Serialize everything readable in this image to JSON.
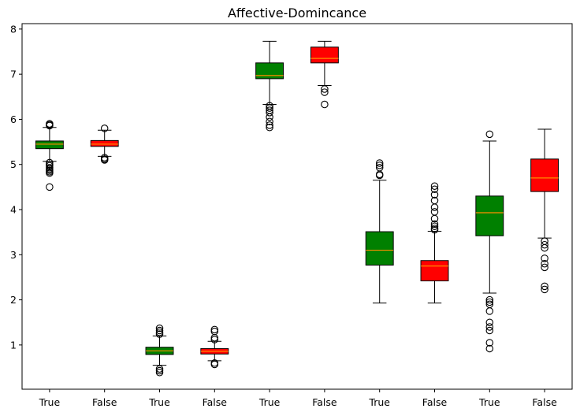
{
  "chart_data": {
    "type": "box",
    "title": "Affective-Domincance",
    "xlabel": "",
    "ylabel": "",
    "categories": [
      "True",
      "False",
      "True",
      "False",
      "True",
      "False",
      "True",
      "False",
      "True",
      "False"
    ],
    "yticks": [
      1,
      2,
      3,
      4,
      5,
      6,
      7,
      8
    ],
    "ylim": [
      0.02,
      8.12
    ],
    "grid": false,
    "colors": {
      "True": "#008000",
      "False": "#ff0000",
      "median": "#ff8c00"
    },
    "boxes": [
      {
        "label": "True",
        "whisker_low": 5.07,
        "q1": 5.35,
        "median": 5.45,
        "q3": 5.52,
        "whisker_high": 5.82,
        "outliers": [
          5.86,
          5.88,
          5.9,
          5.04,
          5.0,
          4.97,
          4.93,
          4.9,
          4.87,
          4.84,
          4.81,
          4.5
        ]
      },
      {
        "label": "False",
        "whisker_low": 5.18,
        "q1": 5.4,
        "median": 5.45,
        "q3": 5.53,
        "whisker_high": 5.76,
        "outliers": [
          5.8,
          5.15,
          5.12,
          5.1
        ]
      },
      {
        "label": "True",
        "whisker_low": 0.55,
        "q1": 0.79,
        "median": 0.87,
        "q3": 0.95,
        "whisker_high": 1.2,
        "outliers": [
          1.24,
          1.28,
          1.32,
          1.37,
          0.47,
          0.43,
          0.39
        ]
      },
      {
        "label": "False",
        "whisker_low": 0.65,
        "q1": 0.8,
        "median": 0.86,
        "q3": 0.92,
        "whisker_high": 1.08,
        "outliers": [
          1.12,
          1.16,
          1.3,
          1.34,
          0.6,
          0.57
        ]
      },
      {
        "label": "True",
        "whisker_low": 6.33,
        "q1": 6.9,
        "median": 6.97,
        "q3": 7.25,
        "whisker_high": 7.73,
        "outliers": [
          6.3,
          6.25,
          6.2,
          6.15,
          6.05,
          5.95,
          5.87,
          5.82
        ]
      },
      {
        "label": "False",
        "whisker_low": 6.75,
        "q1": 7.25,
        "median": 7.35,
        "q3": 7.6,
        "whisker_high": 7.73,
        "outliers": [
          6.67,
          6.6,
          6.33
        ]
      },
      {
        "label": "True",
        "whisker_low": 1.93,
        "q1": 2.77,
        "median": 3.1,
        "q3": 3.51,
        "whisker_high": 4.65,
        "outliers": [
          4.76,
          4.78,
          4.93,
          4.98,
          5.03
        ]
      },
      {
        "label": "False",
        "whisker_low": 1.93,
        "q1": 2.42,
        "median": 2.75,
        "q3": 2.87,
        "whisker_high": 3.52,
        "outliers": [
          3.55,
          3.58,
          3.63,
          3.68,
          3.8,
          3.95,
          4.05,
          4.2,
          4.33,
          4.45,
          4.52
        ]
      },
      {
        "label": "True",
        "whisker_low": 2.15,
        "q1": 3.42,
        "median": 3.93,
        "q3": 4.3,
        "whisker_high": 5.52,
        "outliers": [
          5.67,
          2.0,
          1.95,
          1.9,
          1.75,
          1.5,
          1.4,
          1.32,
          1.05,
          0.92
        ]
      },
      {
        "label": "False",
        "whisker_low": 3.37,
        "q1": 4.4,
        "median": 4.7,
        "q3": 5.12,
        "whisker_high": 5.78,
        "outliers": [
          3.3,
          3.22,
          3.15,
          2.92,
          2.8,
          2.72,
          2.3,
          2.23
        ]
      }
    ]
  }
}
